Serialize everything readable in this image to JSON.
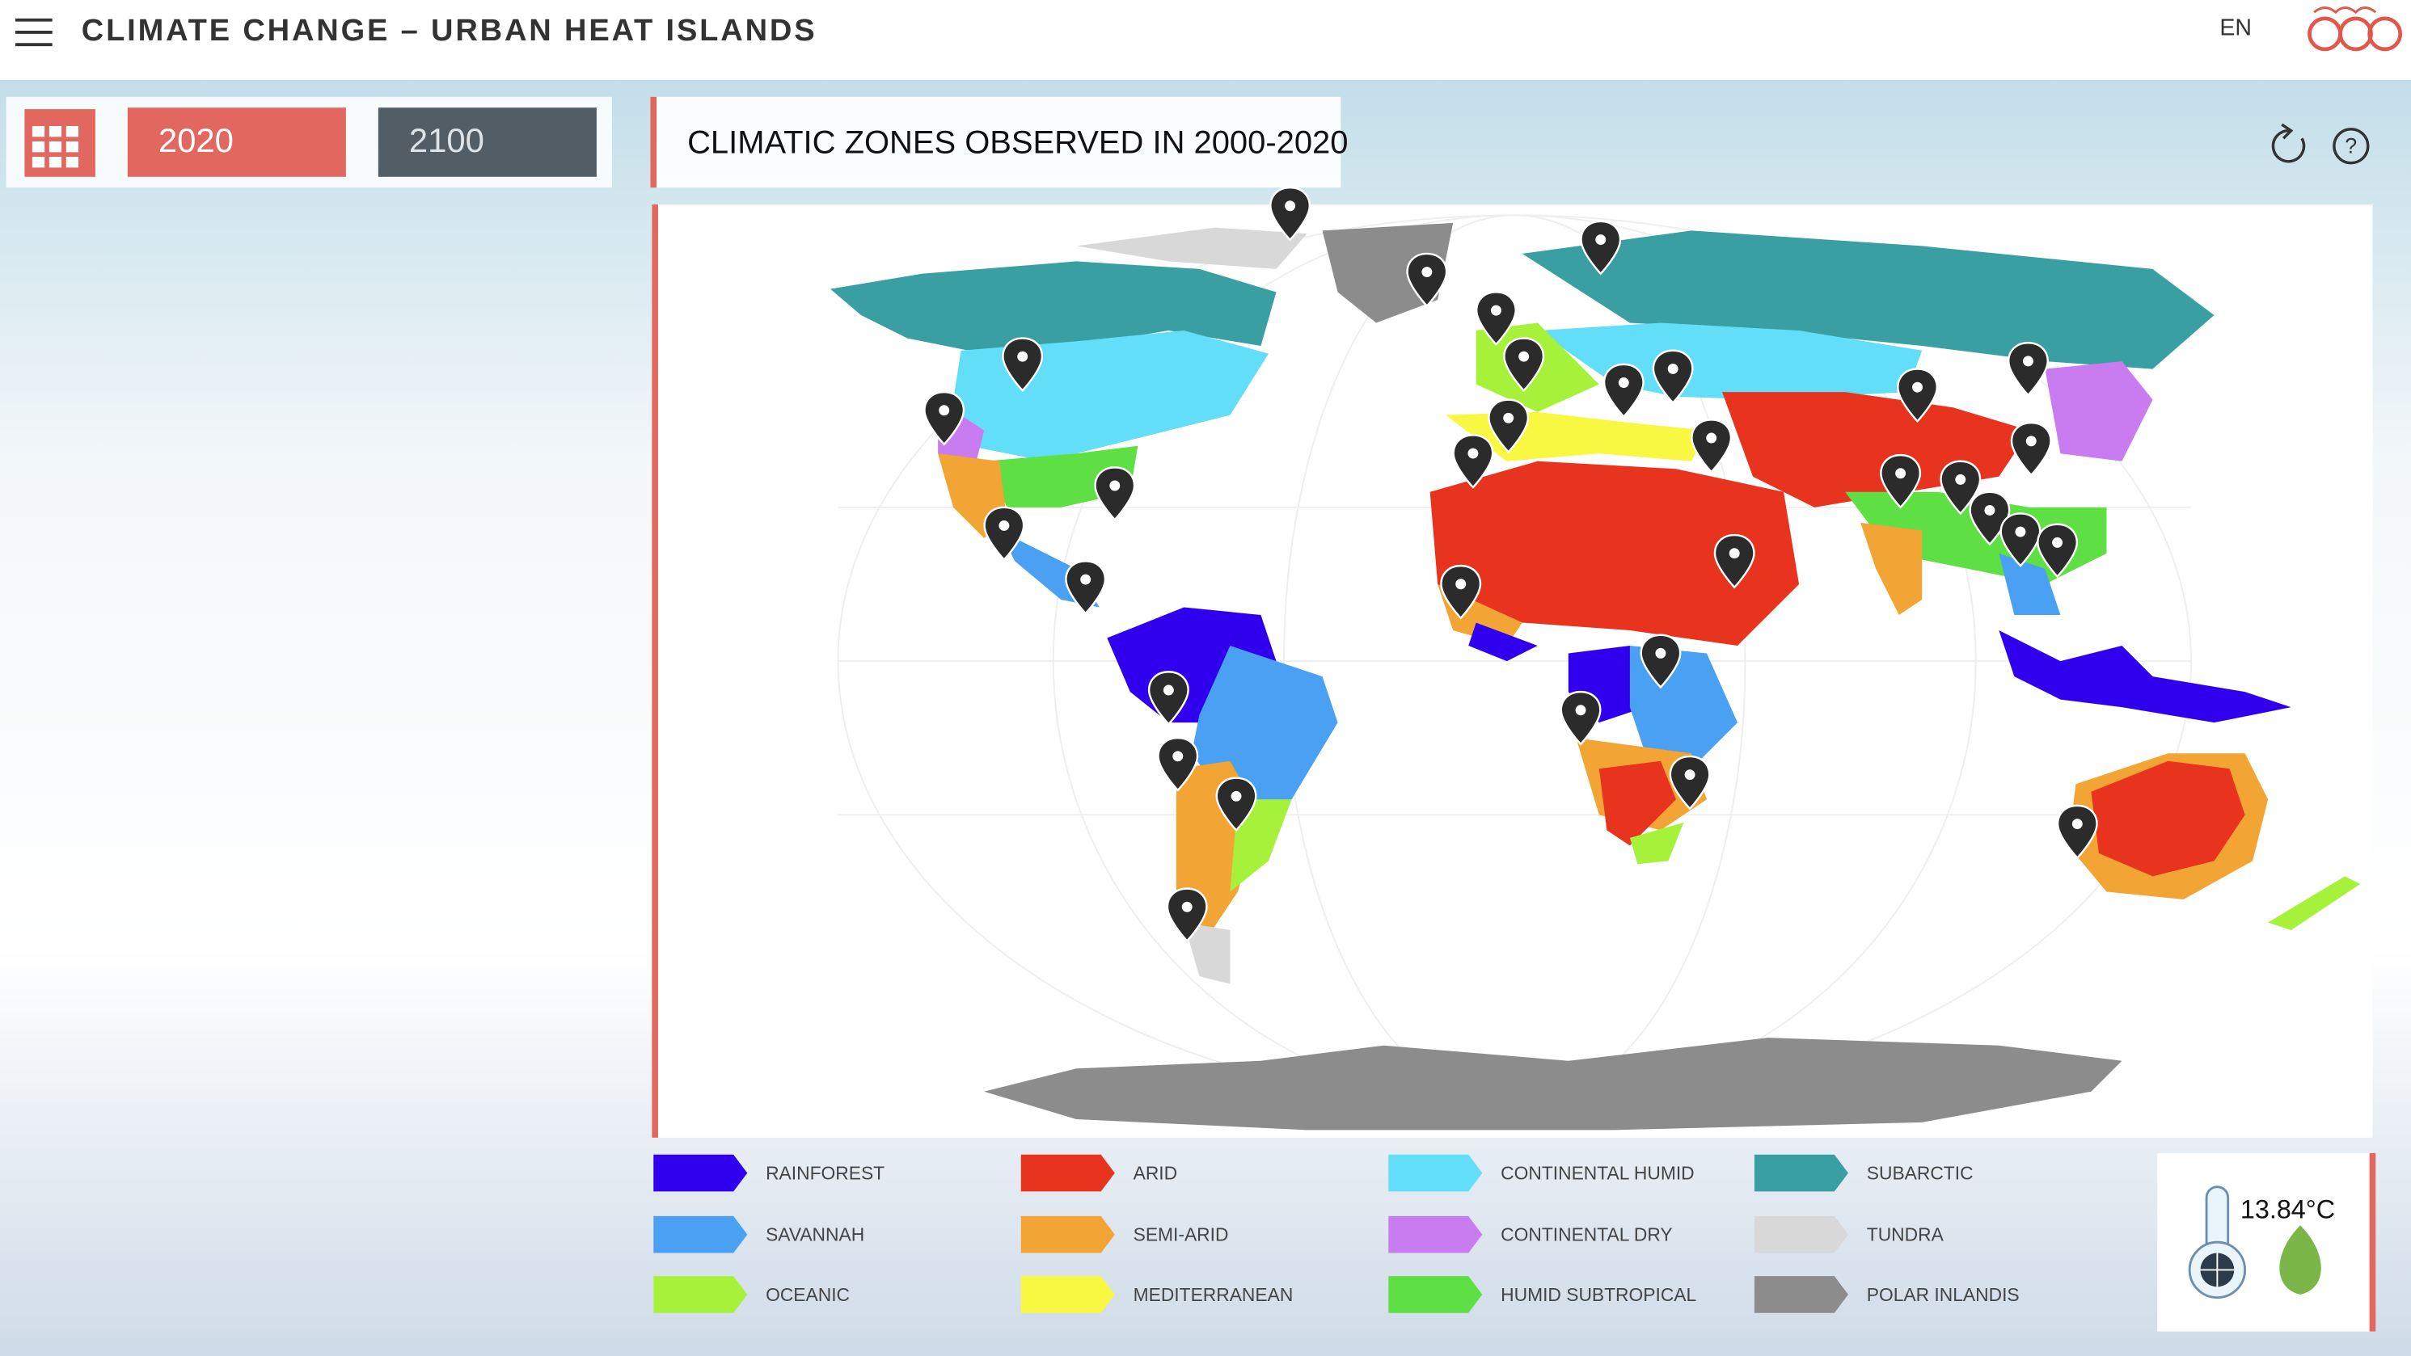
{
  "header": {
    "title": "CLIMATE CHANGE – URBAN HEAT ISLANDS",
    "language": "EN"
  },
  "year_buttons": [
    "2020",
    "2100"
  ],
  "panel": {
    "title": "CLIMATIC ZONES OBSERVED IN 2000-2020"
  },
  "legend": [
    {
      "label": "RAINFOREST",
      "color": "#3000ee"
    },
    {
      "label": "SAVANNAH",
      "color": "#4aa0f2"
    },
    {
      "label": "OCEANIC",
      "color": "#a6f23a"
    },
    {
      "label": "ARID",
      "color": "#e8341f"
    },
    {
      "label": "SEMI-ARID",
      "color": "#f2a434"
    },
    {
      "label": "MEDITERRANEAN",
      "color": "#f8f842"
    },
    {
      "label": "CONTINENTAL HUMID",
      "color": "#62def8"
    },
    {
      "label": "CONTINENTAL DRY",
      "color": "#c87cf0"
    },
    {
      "label": "HUMID SUBTROPICAL",
      "color": "#5ee044"
    },
    {
      "label": "SUBARCTIC",
      "color": "#3a9fa2"
    },
    {
      "label": "TUNDRA",
      "color": "#d8d8d8"
    },
    {
      "label": "POLAR INLANDIS",
      "color": "#8c8c8c"
    }
  ],
  "temperature": "13.84°C"
}
